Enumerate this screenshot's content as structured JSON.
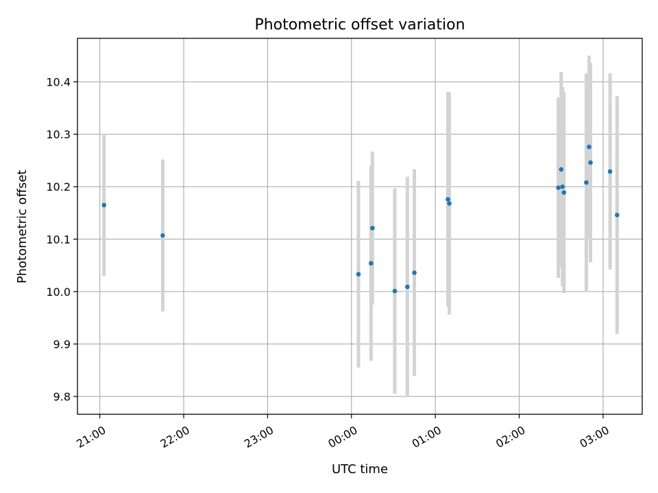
{
  "chart_data": {
    "type": "scatter",
    "title": "Photometric offset variation",
    "xlabel": "UTC time",
    "ylabel": "Photometric offset",
    "grid": true,
    "colors": {
      "point": "#1f77b4",
      "errorbar": "#d3d3d3"
    },
    "x_tick_labels": [
      "21:00",
      "22:00",
      "23:00",
      "00:00",
      "01:00",
      "02:00",
      "03:00"
    ],
    "xlim": [
      "20:44",
      "03:28"
    ],
    "y_ticks": [
      9.8,
      9.9,
      10.0,
      10.1,
      10.2,
      10.3,
      10.4
    ],
    "y_tick_labels": [
      "9.8",
      "9.9",
      "10.0",
      "10.1",
      "10.2",
      "10.3",
      "10.4"
    ],
    "ylim": [
      9.766,
      10.483
    ],
    "points": [
      {
        "time": "21:03",
        "y": 10.165,
        "err": 0.135
      },
      {
        "time": "21:45",
        "y": 10.107,
        "err": 0.145
      },
      {
        "time": "00:05",
        "y": 10.033,
        "err": 0.178
      },
      {
        "time": "00:14",
        "y": 10.054,
        "err": 0.186
      },
      {
        "time": "00:15",
        "y": 10.121,
        "err": 0.146
      },
      {
        "time": "00:31",
        "y": 10.001,
        "err": 0.196
      },
      {
        "time": "00:40",
        "y": 10.009,
        "err": 0.21
      },
      {
        "time": "00:45",
        "y": 10.036,
        "err": 0.197
      },
      {
        "time": "01:09",
        "y": 10.176,
        "err": 0.205
      },
      {
        "time": "01:10",
        "y": 10.168,
        "err": 0.212
      },
      {
        "time": "02:28",
        "y": 10.198,
        "err": 0.172
      },
      {
        "time": "02:30",
        "y": 10.233,
        "err": 0.186
      },
      {
        "time": "02:31",
        "y": 10.2,
        "err": 0.19
      },
      {
        "time": "02:32",
        "y": 10.189,
        "err": 0.192
      },
      {
        "time": "02:48",
        "y": 10.208,
        "err": 0.208
      },
      {
        "time": "02:50",
        "y": 10.276,
        "err": 0.174
      },
      {
        "time": "02:51",
        "y": 10.246,
        "err": 0.19
      },
      {
        "time": "03:05",
        "y": 10.229,
        "err": 0.187
      },
      {
        "time": "03:10",
        "y": 10.146,
        "err": 0.227
      }
    ]
  }
}
